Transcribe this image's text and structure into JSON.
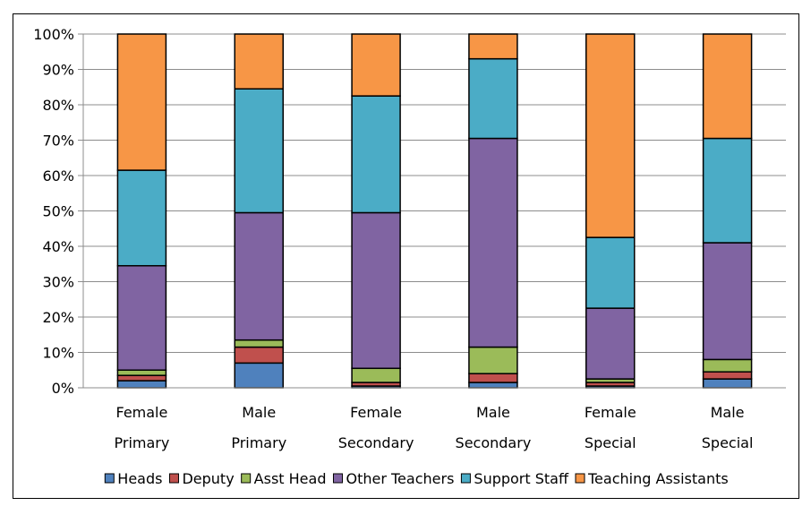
{
  "chart_data": {
    "type": "bar",
    "stacked": true,
    "percent": true,
    "categories": [
      [
        "Female",
        "Primary"
      ],
      [
        "Male",
        "Primary"
      ],
      [
        "Female",
        "Secondary"
      ],
      [
        "Male",
        "Secondary"
      ],
      [
        "Female",
        "Special"
      ],
      [
        "Male",
        "Special"
      ]
    ],
    "series": [
      {
        "name": "Heads",
        "color": "#4f81bd",
        "values": [
          2,
          7,
          0.5,
          1.5,
          0.5,
          2.5
        ]
      },
      {
        "name": "Deputy",
        "color": "#c0504d",
        "values": [
          1.5,
          4.5,
          1,
          2.5,
          1,
          2
        ]
      },
      {
        "name": "Asst Head",
        "color": "#9bbb59",
        "values": [
          1.5,
          2,
          4,
          7.5,
          1,
          3.5
        ]
      },
      {
        "name": "Other Teachers",
        "color": "#8064a2",
        "values": [
          29.5,
          36,
          44,
          59,
          20,
          33
        ]
      },
      {
        "name": "Support Staff",
        "color": "#4bacc6",
        "values": [
          27,
          35,
          33,
          22.5,
          20,
          29.5
        ]
      },
      {
        "name": "Teaching Assistants",
        "color": "#f79646",
        "values": [
          38.5,
          15.5,
          17.5,
          7,
          57.5,
          29.5
        ]
      }
    ],
    "ylim": [
      0,
      100
    ],
    "yticks": [
      "0%",
      "10%",
      "20%",
      "30%",
      "40%",
      "50%",
      "60%",
      "70%",
      "80%",
      "90%",
      "100%"
    ],
    "grid": true,
    "legend": "bottom",
    "title": "",
    "xlabel": "",
    "ylabel": ""
  }
}
